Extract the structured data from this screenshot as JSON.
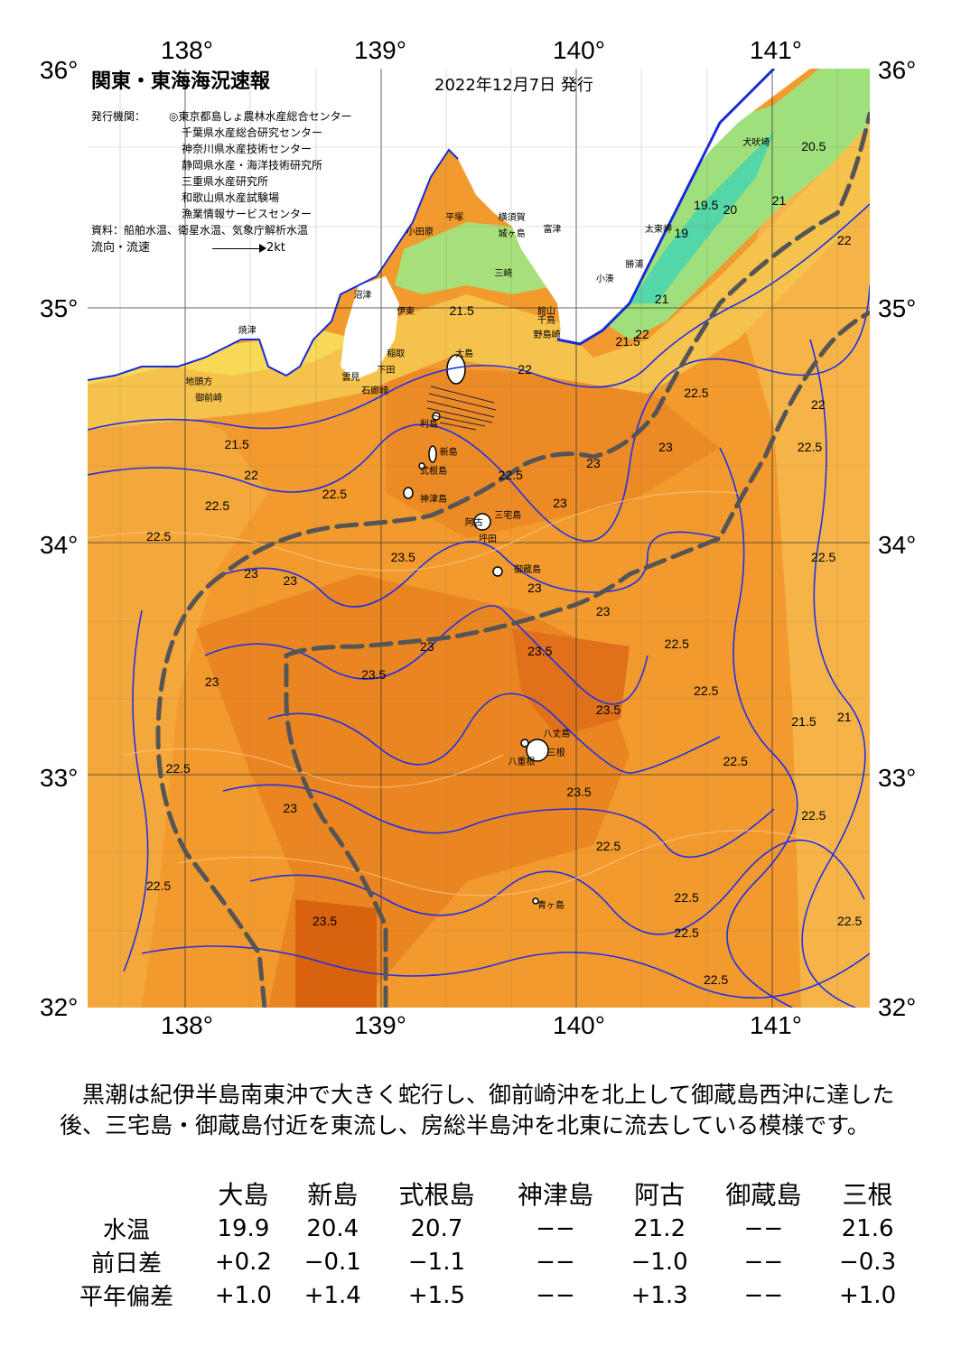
{
  "map": {
    "title": "関東・東海海況速報",
    "issue_date": "2022年12月7日 発行",
    "issuers_label": "発行機関：",
    "issuers": [
      "◎東京都島しょ農林水産総合センター",
      "千葉県水産総合研究センター",
      "神奈川県水産技術センター",
      "静岡県水産・海洋技術研究所",
      "三重県水産研究所",
      "和歌山県水産試験場",
      "漁業情報サービスセンター"
    ],
    "source": "資料：船舶水温、衛星水温、気象庁解析水温",
    "legend_label": "流向・流速",
    "legend_speed": "2kt",
    "lon_labels": [
      "138°",
      "139°",
      "140°",
      "141°"
    ],
    "lat_labels": [
      "36°",
      "35°",
      "34°",
      "33°",
      "32°"
    ],
    "lon_range": [
      137.5,
      141.5
    ],
    "lat_range": [
      32,
      36
    ],
    "places": [
      {
        "name": "犬吠埼",
        "lon": 140.85,
        "lat": 35.72
      },
      {
        "name": "太東岬",
        "lon": 140.35,
        "lat": 35.35
      },
      {
        "name": "勝浦",
        "lon": 140.25,
        "lat": 35.2
      },
      {
        "name": "小湊",
        "lon": 140.1,
        "lat": 35.14
      },
      {
        "name": "富津",
        "lon": 139.83,
        "lat": 35.35
      },
      {
        "name": "館山",
        "lon": 139.8,
        "lat": 35.0
      },
      {
        "name": "千鳥",
        "lon": 139.8,
        "lat": 34.96
      },
      {
        "name": "野島崎",
        "lon": 139.78,
        "lat": 34.9
      },
      {
        "name": "横須賀",
        "lon": 139.6,
        "lat": 35.4
      },
      {
        "name": "城ヶ島",
        "lon": 139.6,
        "lat": 35.33
      },
      {
        "name": "平塚",
        "lon": 139.33,
        "lat": 35.4
      },
      {
        "name": "小田原",
        "lon": 139.13,
        "lat": 35.34
      },
      {
        "name": "三崎",
        "lon": 139.58,
        "lat": 35.16
      },
      {
        "name": "沼津",
        "lon": 138.86,
        "lat": 35.07
      },
      {
        "name": "伊東",
        "lon": 139.08,
        "lat": 35.0
      },
      {
        "name": "焼津",
        "lon": 138.27,
        "lat": 34.92
      },
      {
        "name": "稲取",
        "lon": 139.03,
        "lat": 34.82
      },
      {
        "name": "下田",
        "lon": 138.98,
        "lat": 34.75
      },
      {
        "name": "石廊崎",
        "lon": 138.9,
        "lat": 34.66
      },
      {
        "name": "雲見",
        "lon": 138.8,
        "lat": 34.72
      },
      {
        "name": "地頭方",
        "lon": 138.0,
        "lat": 34.7
      },
      {
        "name": "御前崎",
        "lon": 138.05,
        "lat": 34.63
      },
      {
        "name": "大島",
        "lon": 139.38,
        "lat": 34.82
      },
      {
        "name": "利島",
        "lon": 139.2,
        "lat": 34.52
      },
      {
        "name": "新島",
        "lon": 139.3,
        "lat": 34.4
      },
      {
        "name": "式根島",
        "lon": 139.2,
        "lat": 34.32
      },
      {
        "name": "神津島",
        "lon": 139.2,
        "lat": 34.2
      },
      {
        "name": "阿古",
        "lon": 139.43,
        "lat": 34.1
      },
      {
        "name": "三宅島",
        "lon": 139.58,
        "lat": 34.13
      },
      {
        "name": "坪田",
        "lon": 139.5,
        "lat": 34.03
      },
      {
        "name": "御蔵島",
        "lon": 139.68,
        "lat": 33.9
      },
      {
        "name": "八丈島",
        "lon": 139.83,
        "lat": 33.2
      },
      {
        "name": "三根",
        "lon": 139.85,
        "lat": 33.12
      },
      {
        "name": "八重根",
        "lon": 139.65,
        "lat": 33.08
      },
      {
        "name": "青ヶ島",
        "lon": 139.8,
        "lat": 32.47
      }
    ],
    "temp_labels": [
      {
        "t": "20.5",
        "lon": 141.15,
        "lat": 35.7
      },
      {
        "t": "19.5",
        "lon": 140.6,
        "lat": 35.45
      },
      {
        "t": "20",
        "lon": 140.75,
        "lat": 35.43
      },
      {
        "t": "21",
        "lon": 141.0,
        "lat": 35.47
      },
      {
        "t": "22",
        "lon": 141.35,
        "lat": 35.3
      },
      {
        "t": "19",
        "lon": 140.5,
        "lat": 35.33
      },
      {
        "t": "21",
        "lon": 140.4,
        "lat": 35.05
      },
      {
        "t": "21.5",
        "lon": 139.35,
        "lat": 35.0
      },
      {
        "t": "22",
        "lon": 139.7,
        "lat": 34.75
      },
      {
        "t": "21.5",
        "lon": 140.2,
        "lat": 34.87
      },
      {
        "t": "22",
        "lon": 140.3,
        "lat": 34.9
      },
      {
        "t": "22.5",
        "lon": 140.55,
        "lat": 34.65
      },
      {
        "t": "22",
        "lon": 141.2,
        "lat": 34.6
      },
      {
        "t": "22.5",
        "lon": 141.13,
        "lat": 34.42
      },
      {
        "t": "23",
        "lon": 140.42,
        "lat": 34.42
      },
      {
        "t": "23",
        "lon": 140.05,
        "lat": 34.35
      },
      {
        "t": "22.5",
        "lon": 139.6,
        "lat": 34.3
      },
      {
        "t": "23",
        "lon": 139.88,
        "lat": 34.18
      },
      {
        "t": "21.5",
        "lon": 138.2,
        "lat": 34.43
      },
      {
        "t": "22",
        "lon": 138.3,
        "lat": 34.3
      },
      {
        "t": "22.5",
        "lon": 138.7,
        "lat": 34.22
      },
      {
        "t": "22.5",
        "lon": 138.1,
        "lat": 34.17
      },
      {
        "t": "22.5",
        "lon": 137.8,
        "lat": 34.04
      },
      {
        "t": "23",
        "lon": 138.3,
        "lat": 33.88
      },
      {
        "t": "23",
        "lon": 138.5,
        "lat": 33.85
      },
      {
        "t": "23.5",
        "lon": 139.05,
        "lat": 33.95
      },
      {
        "t": "23",
        "lon": 139.75,
        "lat": 33.82
      },
      {
        "t": "23",
        "lon": 140.1,
        "lat": 33.72
      },
      {
        "t": "23",
        "lon": 139.2,
        "lat": 33.57
      },
      {
        "t": "23.5",
        "lon": 139.75,
        "lat": 33.55
      },
      {
        "t": "22.5",
        "lon": 140.45,
        "lat": 33.58
      },
      {
        "t": "22.5",
        "lon": 140.6,
        "lat": 33.38
      },
      {
        "t": "23.5",
        "lon": 140.1,
        "lat": 33.3
      },
      {
        "t": "23.5",
        "lon": 138.9,
        "lat": 33.45
      },
      {
        "t": "23",
        "lon": 138.1,
        "lat": 33.42
      },
      {
        "t": "22.5",
        "lon": 137.9,
        "lat": 33.05
      },
      {
        "t": "23",
        "lon": 138.5,
        "lat": 32.88
      },
      {
        "t": "23.5",
        "lon": 139.95,
        "lat": 32.95
      },
      {
        "t": "22.5",
        "lon": 140.1,
        "lat": 32.72
      },
      {
        "t": "22.5",
        "lon": 140.75,
        "lat": 33.08
      },
      {
        "t": "22.5",
        "lon": 141.15,
        "lat": 32.85
      },
      {
        "t": "22.5",
        "lon": 137.8,
        "lat": 32.55
      },
      {
        "t": "23.5",
        "lon": 138.65,
        "lat": 32.4
      },
      {
        "t": "22.5",
        "lon": 140.5,
        "lat": 32.5
      },
      {
        "t": "22.5",
        "lon": 140.5,
        "lat": 32.35
      },
      {
        "t": "22.5",
        "lon": 140.65,
        "lat": 32.15
      },
      {
        "t": "22.5",
        "lon": 141.35,
        "lat": 32.4
      },
      {
        "t": "21",
        "lon": 141.35,
        "lat": 33.27
      },
      {
        "t": "21.5",
        "lon": 141.1,
        "lat": 33.25
      },
      {
        "t": "22.5",
        "lon": 141.2,
        "lat": 33.95
      }
    ],
    "colors": {
      "sea_main": "#f29a2e",
      "sea_warm": "#e2741a",
      "sea_hot": "#d9620f",
      "sea_cool": "#f6b94a",
      "coast_cold": "#f7d957",
      "cold_green": "#9fe07c",
      "cold_teal": "#53d6a8",
      "land": "#ffffff",
      "contour": "#2330e6",
      "kuroshio": "#555555"
    }
  },
  "narrative": "　黒潮は紀伊半島南東沖で大きく蛇行し、御前崎沖を北上して御蔵島西沖に達した後、三宅島・御蔵島付近を東流し、房総半島沖を北東に流去している模様です。",
  "table": {
    "headers": [
      "",
      "大島",
      "新島",
      "式根島",
      "神津島",
      "阿古",
      "御蔵島",
      "三根"
    ],
    "rows": [
      {
        "label": "水温",
        "values": [
          "19.9",
          "20.4",
          "20.7",
          "−−",
          "21.2",
          "−−",
          "21.6"
        ]
      },
      {
        "label": "前日差",
        "values": [
          "+0.2",
          "−0.1",
          "−1.1",
          "−−",
          "−1.0",
          "−−",
          "−0.3"
        ]
      },
      {
        "label": "平年偏差",
        "values": [
          "+1.0",
          "+1.4",
          "+1.5",
          "−−",
          "+1.3",
          "−−",
          "+1.0"
        ]
      }
    ]
  }
}
